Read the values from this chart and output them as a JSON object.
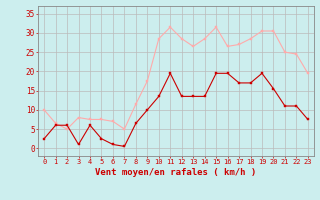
{
  "x": [
    0,
    1,
    2,
    3,
    4,
    5,
    6,
    7,
    8,
    9,
    10,
    11,
    12,
    13,
    14,
    15,
    16,
    17,
    18,
    19,
    20,
    21,
    22,
    23
  ],
  "wind_avg": [
    2.5,
    6,
    6,
    1,
    6,
    2.5,
    1,
    0.5,
    6.5,
    10,
    13.5,
    19.5,
    13.5,
    13.5,
    13.5,
    19.5,
    19.5,
    17,
    17,
    19.5,
    15.5,
    11,
    11,
    7.5
  ],
  "wind_gust": [
    10,
    6.5,
    5,
    8,
    7.5,
    7.5,
    7,
    5,
    11.5,
    17.5,
    28.5,
    31.5,
    28.5,
    26.5,
    28.5,
    31.5,
    26.5,
    27,
    28.5,
    30.5,
    30.5,
    25,
    24.5,
    19.5
  ],
  "color_avg": "#cc0000",
  "color_gust": "#ffaaaa",
  "bg_color": "#cceeee",
  "grid_color": "#bbbbbb",
  "xlabel": "Vent moyen/en rafales ( km/h )",
  "xlabel_color": "#cc0000",
  "tick_color": "#cc0000",
  "ylim": [
    -2,
    37
  ],
  "yticks": [
    0,
    5,
    10,
    15,
    20,
    25,
    30,
    35
  ],
  "xticks": [
    0,
    1,
    2,
    3,
    4,
    5,
    6,
    7,
    8,
    9,
    10,
    11,
    12,
    13,
    14,
    15,
    16,
    17,
    18,
    19,
    20,
    21,
    22,
    23
  ]
}
